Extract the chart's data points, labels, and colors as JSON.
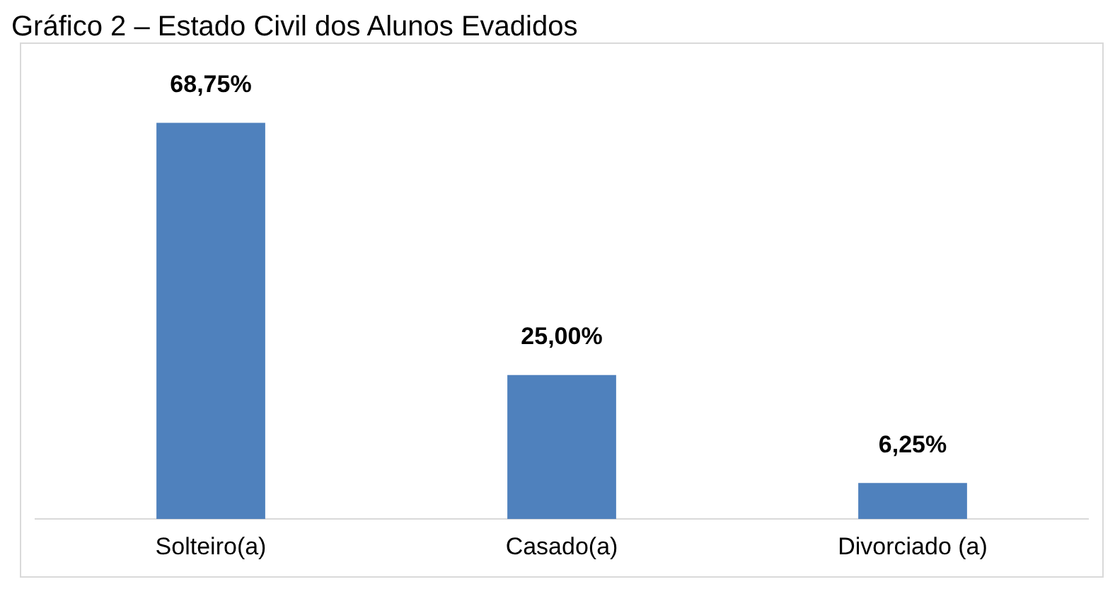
{
  "chart_data": {
    "type": "bar",
    "title": "Gráfico 2 – Estado Civil dos Alunos Evadidos",
    "categories": [
      "Solteiro(a)",
      "Casado(a)",
      "Divorciado (a)"
    ],
    "values": [
      68.75,
      25,
      6.25
    ],
    "value_labels": [
      "68,75%",
      "25,00%",
      "6,25%"
    ],
    "color": "#4f81bd",
    "grid": false,
    "legend": false
  }
}
